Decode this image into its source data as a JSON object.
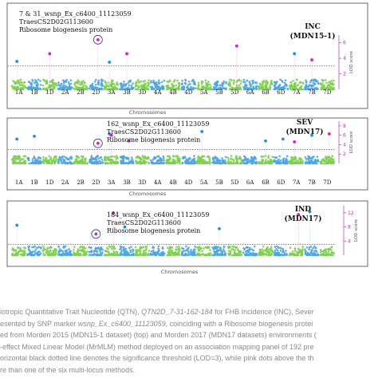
{
  "chromosomes": [
    "1A",
    "1B",
    "1D",
    "2A",
    "2B",
    "2D",
    "3A",
    "3B",
    "3D",
    "4A",
    "4B",
    "4D",
    "5A",
    "5B",
    "5D",
    "6A",
    "6B",
    "6D",
    "7A",
    "7B",
    "7D"
  ],
  "panels": [
    {
      "id": "inc",
      "trait": "INC",
      "dataset": "(MDN15-1)",
      "annotation": [
        "7 & 31_wsnp_Ex_c6400_11123059",
        "TraesCS2D02G113600",
        "Ribosome biogenesis protein"
      ],
      "xlabel": "Chromosomes",
      "ylabel": "LOD score",
      "ytick_labels": [
        "2",
        "4",
        "6"
      ]
    },
    {
      "id": "sev",
      "trait": "SEV",
      "dataset": "(MDN17)",
      "annotation": [
        "162_wsnp_Ex_c6400_11123059",
        "TraesCS2D02G113600",
        "Ribosome biogenesis protein"
      ],
      "xlabel": "Chromosomes",
      "ylabel": "LOD score",
      "ytick_labels": [
        "2",
        "4",
        "6",
        "8"
      ]
    },
    {
      "id": "ind",
      "trait": "IND",
      "dataset": "(MDN17)",
      "annotation": [
        "184_wsnp_Ex_c6400_11123059",
        "TraesCS2D02G113600",
        "Ribosome biogenesis protein"
      ],
      "xlabel": "Chromosomes",
      "ylabel": "LOD score",
      "ytick_labels": [
        "4",
        "8",
        "12"
      ]
    }
  ],
  "caption": {
    "line1_pre": "iotropic Quantitative Trait Nucleotide (QTN), ",
    "line1_em": "QTN2D_7-31-162-184",
    "line1_post": " for FHB Incidence (INC), Sever",
    "line2_pre": "esented by SNP marker ",
    "line2_em": "wsnp_Ex_c6400_11123059",
    "line2_post": ", coinciding with a Ribosome biogenesis protei",
    "line3": "ed from Morden 2015 (MDN15-1 dataset) (top) and Morden 2017 (MDN17 datasets) environments (",
    "line4": "-effect Mixed Linear Model (MrMLM) method deployed on an association mapping panel of 192 pre",
    "line5": "orizontal black dotted line denotes the significance threshold (LOD=3), while pink dots above the th",
    "line6": "re than one of the six multi-locus methods."
  },
  "chart_data": [
    {
      "type": "scatter",
      "title": "INC (MDN15-1)",
      "xlabel": "Chromosomes",
      "ylabel": "LOD score",
      "ylim": [
        0,
        7
      ],
      "threshold_lod": 3,
      "categories": [
        "1A",
        "1B",
        "1D",
        "2A",
        "2B",
        "2D",
        "3A",
        "3B",
        "3D",
        "4A",
        "4B",
        "4D",
        "5A",
        "5B",
        "5D",
        "6A",
        "6B",
        "6D",
        "7A",
        "7B",
        "7D"
      ],
      "qtn_markers": [
        {
          "chromosome": "1A",
          "lod": 3.6,
          "color": "blue"
        },
        {
          "chromosome": "1D",
          "lod": 4.6,
          "color": "pink"
        },
        {
          "chromosome": "2D",
          "lod": 6.4,
          "color": "pink",
          "circled": true
        },
        {
          "chromosome": "3A",
          "lod": 3.5,
          "color": "blue"
        },
        {
          "chromosome": "3B",
          "lod": 4.6,
          "color": "pink"
        },
        {
          "chromosome": "5D",
          "lod": 5.6,
          "color": "pink"
        },
        {
          "chromosome": "7A",
          "lod": 4.6,
          "color": "blue"
        },
        {
          "chromosome": "7B",
          "lod": 3.8,
          "color": "pink"
        }
      ]
    },
    {
      "type": "scatter",
      "title": "SEV (MDN17)",
      "xlabel": "Chromosomes",
      "ylabel": "LOD score",
      "ylim": [
        0,
        9
      ],
      "threshold_lod": 3,
      "categories": [
        "1A",
        "1B",
        "1D",
        "2A",
        "2B",
        "2D",
        "3A",
        "3B",
        "3D",
        "4A",
        "4B",
        "4D",
        "5A",
        "5B",
        "5D",
        "6A",
        "6B",
        "6D",
        "7A",
        "7B",
        "7D"
      ],
      "qtn_markers": [
        {
          "chromosome": "1A",
          "lod": 5.2,
          "color": "blue"
        },
        {
          "chromosome": "1B",
          "lod": 5.8,
          "color": "blue"
        },
        {
          "chromosome": "2D",
          "lod": 4.3,
          "color": "pink",
          "circled": true
        },
        {
          "chromosome": "3A",
          "lod": 6.3,
          "color": "blue"
        },
        {
          "chromosome": "3A",
          "lod": 6.0,
          "color": "pink"
        },
        {
          "chromosome": "3B",
          "lod": 4.8,
          "color": "pink"
        },
        {
          "chromosome": "5A",
          "lod": 6.8,
          "color": "blue"
        },
        {
          "chromosome": "6B",
          "lod": 4.8,
          "color": "blue"
        },
        {
          "chromosome": "6D",
          "lod": 5.2,
          "color": "blue"
        },
        {
          "chromosome": "7A",
          "lod": 4.6,
          "color": "pink"
        },
        {
          "chromosome": "7B",
          "lod": 6.0,
          "color": "blue"
        },
        {
          "chromosome": "7D",
          "lod": 6.3,
          "color": "pink"
        }
      ]
    },
    {
      "type": "scatter",
      "title": "IND (MDN17)",
      "xlabel": "Chromosomes",
      "ylabel": "LOD score",
      "ylim": [
        0,
        14
      ],
      "threshold_lod": 3,
      "categories": [
        "1A",
        "1B",
        "1D",
        "2A",
        "2B",
        "2D",
        "3A",
        "3B",
        "3D",
        "4A",
        "4B",
        "4D",
        "5A",
        "5B",
        "5D",
        "6A",
        "6B",
        "6D",
        "7A",
        "7B",
        "7D"
      ],
      "qtn_markers": [
        {
          "chromosome": "1A",
          "lod": 8.5,
          "color": "blue"
        },
        {
          "chromosome": "2D",
          "lod": 6.0,
          "color": "pink",
          "circled": true
        },
        {
          "chromosome": "3A",
          "lod": 12.0,
          "color": "pink"
        },
        {
          "chromosome": "3B",
          "lod": 8.0,
          "color": "blue"
        },
        {
          "chromosome": "5B",
          "lod": 7.5,
          "color": "blue"
        },
        {
          "chromosome": "7A",
          "lod": 11.5,
          "color": "pink"
        },
        {
          "chromosome": "7B",
          "lod": 12.3,
          "color": "blue"
        }
      ]
    }
  ]
}
